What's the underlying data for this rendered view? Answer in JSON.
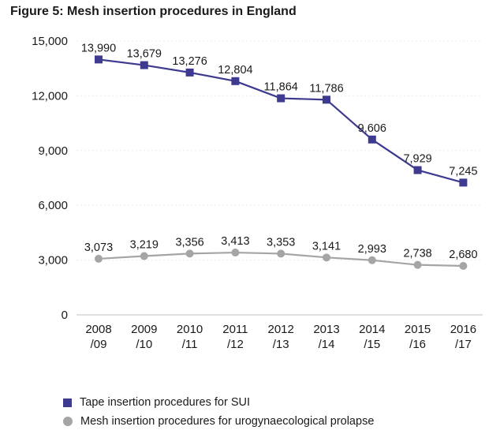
{
  "chart_data": {
    "type": "line",
    "title": "Figure 5: Mesh insertion procedures in England",
    "categories": [
      [
        "2008",
        "/09"
      ],
      [
        "2009",
        "/10"
      ],
      [
        "2010",
        "/11"
      ],
      [
        "2011",
        "/12"
      ],
      [
        "2012",
        "/13"
      ],
      [
        "2013",
        "/14"
      ],
      [
        "2014",
        "/15"
      ],
      [
        "2015",
        "/16"
      ],
      [
        "2016",
        "/17"
      ]
    ],
    "yticks": [
      0,
      3000,
      6000,
      9000,
      12000,
      15000
    ],
    "ytick_labels": [
      "0",
      "3,000",
      "6,000",
      "9,000",
      "12,000",
      "15,000"
    ],
    "ylim": [
      0,
      15000
    ],
    "series": [
      {
        "name": "Tape insertion procedures for SUI",
        "marker": "square",
        "color": "#3d3a8f",
        "values": [
          13990,
          13679,
          13276,
          12804,
          11864,
          11786,
          9606,
          7929,
          7245
        ],
        "labels": [
          "13,990",
          "13,679",
          "13,276",
          "12,804",
          "11,864",
          "11,786",
          "9,606",
          "7,929",
          "7,245"
        ]
      },
      {
        "name": "Mesh insertion procedures for urogynaecological prolapse",
        "marker": "circle",
        "color": "#a5a5a5",
        "values": [
          3073,
          3219,
          3356,
          3413,
          3353,
          3141,
          2993,
          2738,
          2680
        ],
        "labels": [
          "3,073",
          "3,219",
          "3,356",
          "3,413",
          "3,353",
          "3,141",
          "2,993",
          "2,738",
          "2,680"
        ]
      }
    ]
  }
}
